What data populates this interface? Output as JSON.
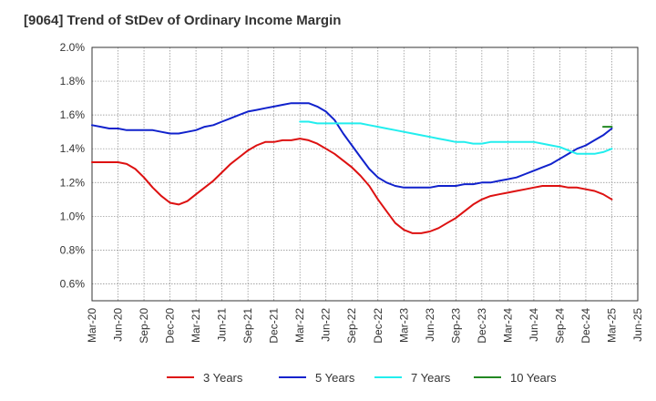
{
  "chart_data": {
    "type": "line",
    "title": "[9064]  Trend of StDev of Ordinary Income Margin",
    "xlabel": "",
    "ylabel": "",
    "grid": true,
    "legend_position": "bottom",
    "x_ticks": [
      "Mar-20",
      "Jun-20",
      "Sep-20",
      "Dec-20",
      "Mar-21",
      "Jun-21",
      "Sep-21",
      "Dec-21",
      "Mar-22",
      "Jun-22",
      "Sep-22",
      "Dec-22",
      "Mar-23",
      "Jun-23",
      "Sep-23",
      "Dec-23",
      "Mar-24",
      "Jun-24",
      "Sep-24",
      "Dec-24",
      "Mar-25",
      "Jun-25"
    ],
    "y_ticks": [
      "0.6%",
      "0.8%",
      "1.0%",
      "1.2%",
      "1.4%",
      "1.6%",
      "1.8%",
      "2.0%"
    ],
    "ylim": [
      0.5,
      2.0
    ],
    "y_unit": "%",
    "series": [
      {
        "name": "3 Years",
        "color": "#dd1111",
        "x": [
          "Mar-20",
          "Apr-20",
          "May-20",
          "Jun-20",
          "Jul-20",
          "Aug-20",
          "Sep-20",
          "Oct-20",
          "Nov-20",
          "Dec-20",
          "Jan-21",
          "Feb-21",
          "Mar-21",
          "Apr-21",
          "May-21",
          "Jun-21",
          "Jul-21",
          "Aug-21",
          "Sep-21",
          "Oct-21",
          "Nov-21",
          "Dec-21",
          "Jan-22",
          "Feb-22",
          "Mar-22",
          "Apr-22",
          "May-22",
          "Jun-22",
          "Jul-22",
          "Aug-22",
          "Sep-22",
          "Oct-22",
          "Nov-22",
          "Dec-22",
          "Jan-23",
          "Feb-23",
          "Mar-23",
          "Apr-23",
          "May-23",
          "Jun-23",
          "Jul-23",
          "Aug-23",
          "Sep-23",
          "Oct-23",
          "Nov-23",
          "Dec-23",
          "Jan-24",
          "Feb-24",
          "Mar-24",
          "Apr-24",
          "May-24",
          "Jun-24",
          "Jul-24",
          "Aug-24",
          "Sep-24",
          "Oct-24",
          "Nov-24",
          "Dec-24",
          "Jan-25",
          "Feb-25",
          "Mar-25"
        ],
        "values": [
          1.32,
          1.32,
          1.32,
          1.32,
          1.31,
          1.28,
          1.23,
          1.17,
          1.12,
          1.08,
          1.07,
          1.09,
          1.13,
          1.17,
          1.21,
          1.26,
          1.31,
          1.35,
          1.39,
          1.42,
          1.44,
          1.44,
          1.45,
          1.45,
          1.46,
          1.45,
          1.43,
          1.4,
          1.37,
          1.33,
          1.29,
          1.24,
          1.18,
          1.1,
          1.03,
          0.96,
          0.92,
          0.9,
          0.9,
          0.91,
          0.93,
          0.96,
          0.99,
          1.03,
          1.07,
          1.1,
          1.12,
          1.13,
          1.14,
          1.15,
          1.16,
          1.17,
          1.18,
          1.18,
          1.18,
          1.17,
          1.17,
          1.16,
          1.15,
          1.13,
          1.1
        ]
      },
      {
        "name": "5 Years",
        "color": "#1122cc",
        "x": [
          "Mar-20",
          "Apr-20",
          "May-20",
          "Jun-20",
          "Jul-20",
          "Aug-20",
          "Sep-20",
          "Oct-20",
          "Nov-20",
          "Dec-20",
          "Jan-21",
          "Feb-21",
          "Mar-21",
          "Apr-21",
          "May-21",
          "Jun-21",
          "Jul-21",
          "Aug-21",
          "Sep-21",
          "Oct-21",
          "Nov-21",
          "Dec-21",
          "Jan-22",
          "Feb-22",
          "Mar-22",
          "Apr-22",
          "May-22",
          "Jun-22",
          "Jul-22",
          "Aug-22",
          "Sep-22",
          "Oct-22",
          "Nov-22",
          "Dec-22",
          "Jan-23",
          "Feb-23",
          "Mar-23",
          "Apr-23",
          "May-23",
          "Jun-23",
          "Jul-23",
          "Aug-23",
          "Sep-23",
          "Oct-23",
          "Nov-23",
          "Dec-23",
          "Jan-24",
          "Feb-24",
          "Mar-24",
          "Apr-24",
          "May-24",
          "Jun-24",
          "Jul-24",
          "Aug-24",
          "Sep-24",
          "Oct-24",
          "Nov-24",
          "Dec-24",
          "Jan-25",
          "Feb-25",
          "Mar-25"
        ],
        "values": [
          1.54,
          1.53,
          1.52,
          1.52,
          1.51,
          1.51,
          1.51,
          1.51,
          1.5,
          1.49,
          1.49,
          1.5,
          1.51,
          1.53,
          1.54,
          1.56,
          1.58,
          1.6,
          1.62,
          1.63,
          1.64,
          1.65,
          1.66,
          1.67,
          1.67,
          1.67,
          1.65,
          1.62,
          1.57,
          1.49,
          1.42,
          1.35,
          1.28,
          1.23,
          1.2,
          1.18,
          1.17,
          1.17,
          1.17,
          1.17,
          1.18,
          1.18,
          1.18,
          1.19,
          1.19,
          1.2,
          1.2,
          1.21,
          1.22,
          1.23,
          1.25,
          1.27,
          1.29,
          1.31,
          1.34,
          1.37,
          1.4,
          1.42,
          1.45,
          1.48,
          1.52
        ]
      },
      {
        "name": "7 Years",
        "color": "#22eeee",
        "x": [
          "Mar-22",
          "Apr-22",
          "May-22",
          "Jun-22",
          "Jul-22",
          "Aug-22",
          "Sep-22",
          "Oct-22",
          "Nov-22",
          "Dec-22",
          "Jan-23",
          "Feb-23",
          "Mar-23",
          "Apr-23",
          "May-23",
          "Jun-23",
          "Jul-23",
          "Aug-23",
          "Sep-23",
          "Oct-23",
          "Nov-23",
          "Dec-23",
          "Jan-24",
          "Feb-24",
          "Mar-24",
          "Apr-24",
          "May-24",
          "Jun-24",
          "Jul-24",
          "Aug-24",
          "Sep-24",
          "Oct-24",
          "Nov-24",
          "Dec-24",
          "Jan-25",
          "Feb-25",
          "Mar-25"
        ],
        "values": [
          1.56,
          1.56,
          1.55,
          1.55,
          1.55,
          1.55,
          1.55,
          1.55,
          1.54,
          1.53,
          1.52,
          1.51,
          1.5,
          1.49,
          1.48,
          1.47,
          1.46,
          1.45,
          1.44,
          1.44,
          1.43,
          1.43,
          1.44,
          1.44,
          1.44,
          1.44,
          1.44,
          1.44,
          1.43,
          1.42,
          1.41,
          1.39,
          1.37,
          1.37,
          1.37,
          1.38,
          1.4
        ]
      },
      {
        "name": "10 Years",
        "color": "#228822",
        "x": [
          "Feb-25",
          "Mar-25"
        ],
        "values": [
          1.53,
          1.53
        ]
      }
    ]
  }
}
